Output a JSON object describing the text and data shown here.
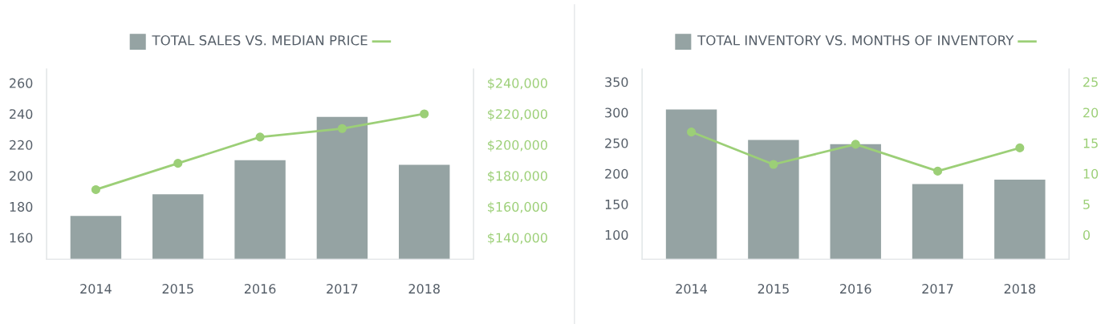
{
  "chart_data": [
    {
      "type": "bar",
      "title": "TOTAL SALES VS. MEDIAN PRICE",
      "categories": [
        "2014",
        "2015",
        "2016",
        "2017",
        "2018"
      ],
      "series": [
        {
          "color": "#95a3a3",
          "values": [
            174,
            188,
            210,
            238,
            207
          ]
        },
        {
          "type": "line",
          "axis": "y2",
          "color": "#9ccf77",
          "values": [
            171000,
            188000,
            205000,
            210500,
            220000
          ]
        }
      ],
      "ylim": [
        146,
        269
      ],
      "yticks": [
        160,
        180,
        200,
        220,
        240,
        260
      ],
      "y2lim": [
        126000,
        249000
      ],
      "y2ticks": [
        {
          "value": 140000,
          "label": "$140,000"
        },
        {
          "value": 160000,
          "label": "$160,000"
        },
        {
          "value": 180000,
          "label": "$180,000"
        },
        {
          "value": 200000,
          "label": "$200,000"
        },
        {
          "value": 220000,
          "label": "$220,000"
        },
        {
          "value": 240000,
          "label": "$240,000"
        }
      ],
      "marker": "circle",
      "grid": false
    },
    {
      "type": "bar",
      "title": "TOTAL INVENTORY VS. MONTHS OF INVENTORY",
      "categories": [
        "2014",
        "2015",
        "2016",
        "2017",
        "2018"
      ],
      "series": [
        {
          "color": "#95a3a3",
          "values": [
            305,
            255,
            248,
            183,
            190
          ]
        },
        {
          "type": "line",
          "axis": "y2",
          "color": "#9ccf77",
          "values": [
            16.8,
            11.5,
            14.8,
            10.4,
            14.2
          ]
        }
      ],
      "ylim": [
        60,
        371
      ],
      "yticks": [
        100,
        150,
        200,
        250,
        300,
        350
      ],
      "y2lim": [
        -4,
        27.1
      ],
      "y2ticks": [
        0,
        5,
        10,
        15,
        20,
        25
      ],
      "marker": "circle",
      "grid": false
    }
  ]
}
